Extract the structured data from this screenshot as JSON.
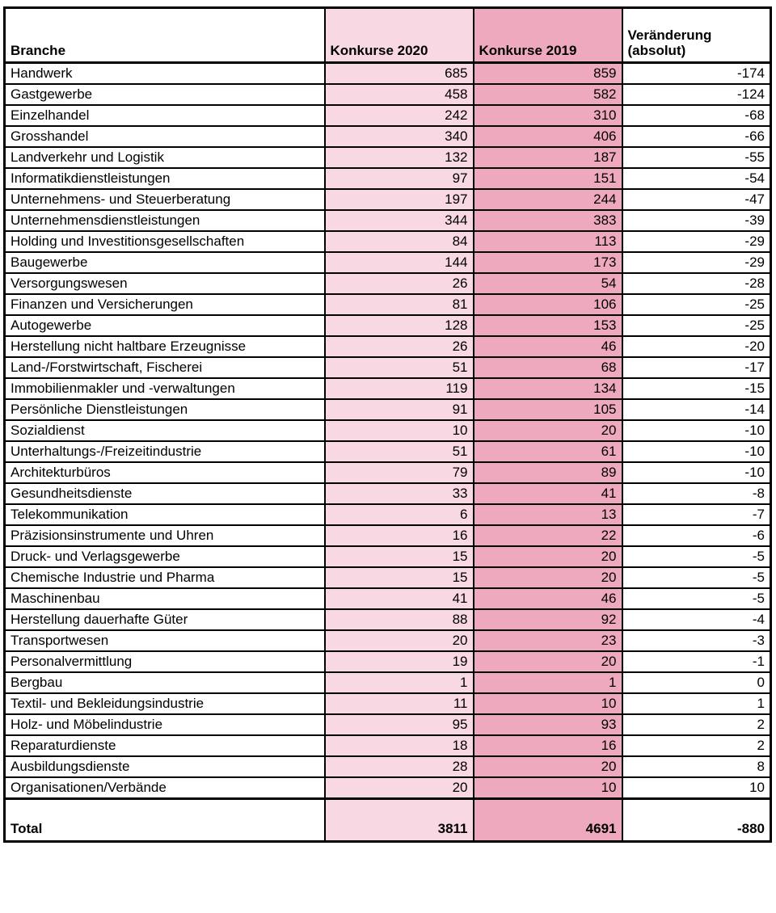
{
  "table": {
    "header_branche": "Branche",
    "header_2020": "Konkurse 2020",
    "header_2019": "Konkurse 2019",
    "header_delta": "Veränderung\n(absolut)"
  },
  "colors": {
    "konkurse_2020_bg": "#f8d8e2",
    "konkurse_2019_bg": "#efa9be",
    "border": "#000000",
    "text": "#000000",
    "background": "#ffffff"
  },
  "chart_data": {
    "type": "table",
    "title": "",
    "columns": [
      "Branche",
      "Konkurse 2020",
      "Konkurse 2019",
      "Veränderung (absolut)"
    ],
    "rows": [
      [
        "Handwerk",
        685,
        859,
        -174
      ],
      [
        "Gastgewerbe",
        458,
        582,
        -124
      ],
      [
        "Einzelhandel",
        242,
        310,
        -68
      ],
      [
        "Grosshandel",
        340,
        406,
        -66
      ],
      [
        "Landverkehr und Logistik",
        132,
        187,
        -55
      ],
      [
        "Informatikdienstleistungen",
        97,
        151,
        -54
      ],
      [
        "Unternehmens- und Steuerberatung",
        197,
        244,
        -47
      ],
      [
        "Unternehmensdienstleistungen",
        344,
        383,
        -39
      ],
      [
        "Holding und Investitionsgesellschaften",
        84,
        113,
        -29
      ],
      [
        "Baugewerbe",
        144,
        173,
        -29
      ],
      [
        "Versorgungswesen",
        26,
        54,
        -28
      ],
      [
        "Finanzen und Versicherungen",
        81,
        106,
        -25
      ],
      [
        "Autogewerbe",
        128,
        153,
        -25
      ],
      [
        "Herstellung nicht haltbare Erzeugnisse",
        26,
        46,
        -20
      ],
      [
        "Land-/Forstwirtschaft, Fischerei",
        51,
        68,
        -17
      ],
      [
        "Immobilienmakler und -verwaltungen",
        119,
        134,
        -15
      ],
      [
        "Persönliche Dienstleistungen",
        91,
        105,
        -14
      ],
      [
        "Sozialdienst",
        10,
        20,
        -10
      ],
      [
        "Unterhaltungs-/Freizeitindustrie",
        51,
        61,
        -10
      ],
      [
        "Architekturbüros",
        79,
        89,
        -10
      ],
      [
        "Gesundheitsdienste",
        33,
        41,
        -8
      ],
      [
        "Telekommunikation",
        6,
        13,
        -7
      ],
      [
        "Präzisionsinstrumente und Uhren",
        16,
        22,
        -6
      ],
      [
        "Druck- und Verlagsgewerbe",
        15,
        20,
        -5
      ],
      [
        "Chemische Industrie und Pharma",
        15,
        20,
        -5
      ],
      [
        "Maschinenbau",
        41,
        46,
        -5
      ],
      [
        "Herstellung dauerhafte Güter",
        88,
        92,
        -4
      ],
      [
        "Transportwesen",
        20,
        23,
        -3
      ],
      [
        "Personalvermittlung",
        19,
        20,
        -1
      ],
      [
        "Bergbau",
        1,
        1,
        0
      ],
      [
        "Textil- und Bekleidungsindustrie",
        11,
        10,
        1
      ],
      [
        "Holz- und Möbelindustrie",
        95,
        93,
        2
      ],
      [
        "Reparaturdienste",
        18,
        16,
        2
      ],
      [
        "Ausbildungsdienste",
        28,
        20,
        8
      ],
      [
        "Organisationen/Verbände",
        20,
        10,
        10
      ]
    ],
    "total": [
      "Total",
      3811,
      4691,
      -880
    ]
  }
}
